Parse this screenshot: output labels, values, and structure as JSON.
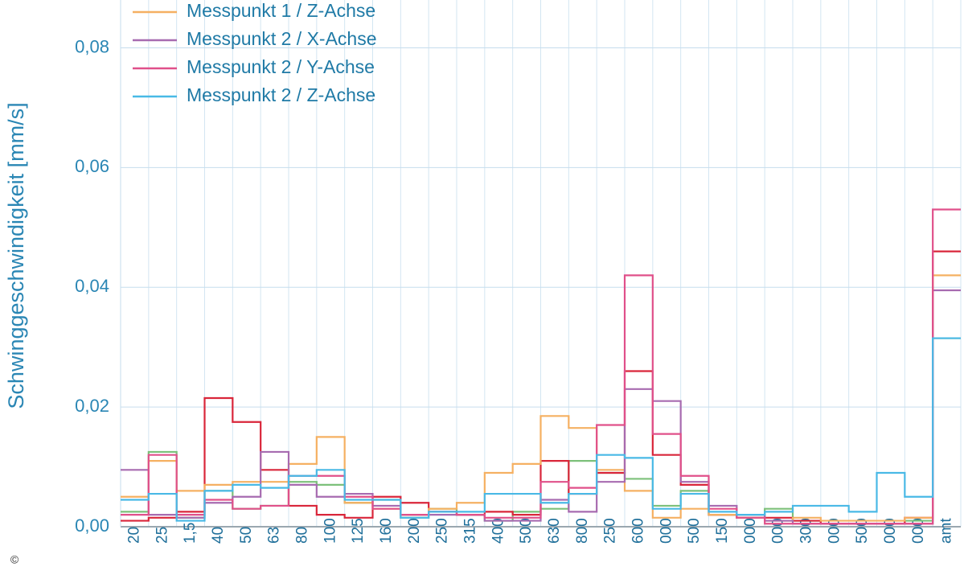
{
  "chart_data": {
    "type": "step",
    "y_label": "Schwinggeschwindigkeit [mm/s]",
    "copyright": "©",
    "categories": [
      "20",
      "25",
      "1,5",
      "40",
      "50",
      "63",
      "80",
      "100",
      "125",
      "160",
      "200",
      "250",
      "315",
      "400",
      "500",
      "630",
      "800",
      "250",
      "600",
      "000",
      "500",
      "150",
      "000",
      "000",
      "300",
      "000",
      "500",
      "000",
      "000",
      "amt"
    ],
    "ylim": [
      0,
      0.088
    ],
    "yticks": [
      {
        "value": 0,
        "label": "0,00"
      },
      {
        "value": 0.02,
        "label": "0,02"
      },
      {
        "value": 0.04,
        "label": "0,04"
      },
      {
        "value": 0.06,
        "label": "0,06"
      },
      {
        "value": 0.08,
        "label": "0,08"
      }
    ],
    "grid": true,
    "legend": "top-left",
    "series": [
      {
        "color": "#7cc07a",
        "values": [
          0.0025,
          0.0125,
          0.0015,
          0.006,
          0.003,
          0.0035,
          0.0075,
          0.007,
          0.004,
          0.0045,
          0.0015,
          0.003,
          0.002,
          0.001,
          0.0025,
          0.003,
          0.011,
          0.009,
          0.008,
          0.0035,
          0.006,
          0.002,
          0.0015,
          0.003,
          0.001,
          0.0005,
          0.0005,
          0.0005,
          0.001,
          0.0315
        ]
      },
      {
        "color": "#d9263a",
        "values": [
          0.001,
          0.0015,
          0.0025,
          0.0215,
          0.0175,
          0.0095,
          0.0035,
          0.002,
          0.0015,
          0.005,
          0.004,
          0.0025,
          0.002,
          0.0025,
          0.002,
          0.011,
          0.0055,
          0.009,
          0.026,
          0.012,
          0.007,
          0.002,
          0.0015,
          0.0015,
          0.001,
          0.0005,
          0.0005,
          0.0005,
          0.0015,
          0.046
        ]
      },
      {
        "name": "Messpunkt 1 / Z-Achse",
        "color": "#f5b062",
        "values": [
          0.005,
          0.011,
          0.006,
          0.007,
          0.0075,
          0.0075,
          0.0105,
          0.015,
          0.004,
          0.003,
          0.002,
          0.003,
          0.004,
          0.009,
          0.0105,
          0.0185,
          0.0165,
          0.0095,
          0.006,
          0.0015,
          0.003,
          0.002,
          0.0015,
          0.001,
          0.0015,
          0.001,
          0.001,
          0.001,
          0.0015,
          0.042
        ]
      },
      {
        "name": "Messpunkt 2 / X-Achse",
        "color": "#a76bb0",
        "values": [
          0.0095,
          0.002,
          0.0015,
          0.004,
          0.005,
          0.0125,
          0.007,
          0.005,
          0.0055,
          0.0035,
          0.002,
          0.002,
          0.002,
          0.001,
          0.001,
          0.0045,
          0.0025,
          0.0075,
          0.023,
          0.021,
          0.0075,
          0.0035,
          0.002,
          0.001,
          0.0005,
          0.0005,
          0.0005,
          0.0005,
          0.0005,
          0.0395
        ]
      },
      {
        "name": "Messpunkt 2 / Y-Achse",
        "color": "#e0508a",
        "values": [
          0.002,
          0.012,
          0.002,
          0.0045,
          0.003,
          0.0035,
          0.0085,
          0.0085,
          0.005,
          0.003,
          0.002,
          0.0025,
          0.002,
          0.0015,
          0.0015,
          0.0075,
          0.0065,
          0.017,
          0.042,
          0.0155,
          0.0085,
          0.003,
          0.0015,
          0.0005,
          0.0005,
          0.0005,
          0.0005,
          0.0005,
          0.0005,
          0.053
        ]
      },
      {
        "name": "Messpunkt 2 / Z-Achse",
        "color": "#49b9e6",
        "values": [
          0.0045,
          0.0055,
          0.001,
          0.006,
          0.007,
          0.0065,
          0.0085,
          0.0095,
          0.0045,
          0.0045,
          0.0015,
          0.0025,
          0.0025,
          0.0055,
          0.0055,
          0.004,
          0.0055,
          0.012,
          0.0115,
          0.003,
          0.0055,
          0.0025,
          0.002,
          0.0025,
          0.0035,
          0.0035,
          0.0025,
          0.009,
          0.005,
          0.0315
        ]
      }
    ]
  }
}
